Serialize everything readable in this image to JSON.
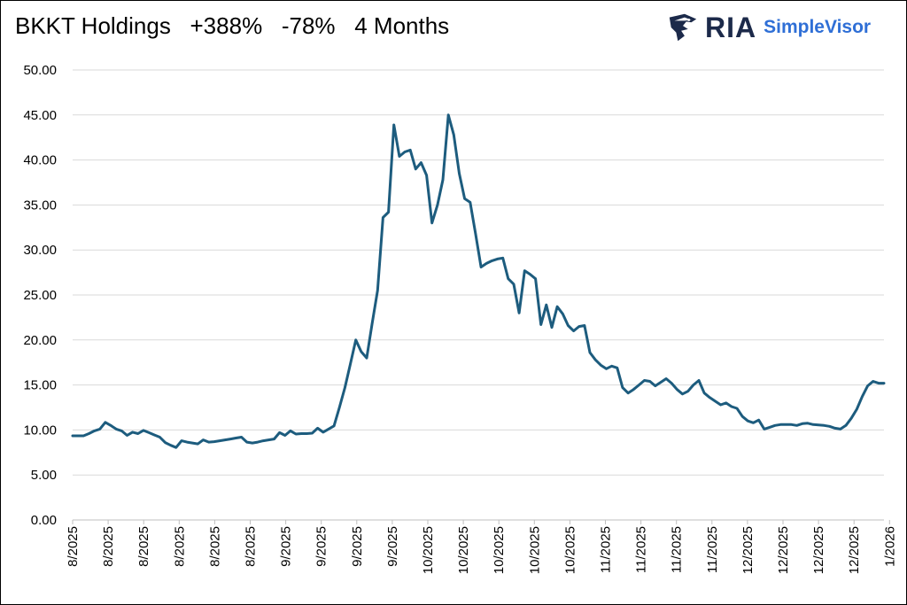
{
  "header": {
    "title": "BKKT Holdings   +388%   -78%   4 Months"
  },
  "brand": {
    "ria": "RIA",
    "simplevisor": "SimpleVisor",
    "colors": {
      "ria": "#1c2a4a",
      "simplevisor": "#2f6fd6"
    },
    "icon": "eagle-logo-icon"
  },
  "chart_data": {
    "type": "line",
    "title": "BKKT Holdings   +388%   -78%   4 Months",
    "xlabel": "",
    "ylabel": "",
    "ylim": [
      0,
      50
    ],
    "yticks": [
      "0.00",
      "5.00",
      "10.00",
      "15.00",
      "20.00",
      "25.00",
      "30.00",
      "35.00",
      "40.00",
      "45.00",
      "50.00"
    ],
    "xticks": [
      "8/2025",
      "8/2025",
      "8/2025",
      "8/2025",
      "8/2025",
      "8/2025",
      "9/2025",
      "9/2025",
      "9/2025",
      "9/2025",
      "10/2025",
      "10/2025",
      "10/2025",
      "10/2025",
      "10/2025",
      "11/2025",
      "11/2025",
      "11/2025",
      "11/2025",
      "12/2025",
      "12/2025",
      "12/2025",
      "12/2025",
      "1/2026"
    ],
    "grid": true,
    "legend": "none",
    "line_color": "#1d5c7e",
    "series": [
      {
        "values": [
          9.35,
          9.35,
          9.35,
          9.6,
          9.9,
          10.1,
          10.85,
          10.5,
          10.1,
          9.9,
          9.4,
          9.75,
          9.6,
          9.95,
          9.7,
          9.45,
          9.2,
          8.6,
          8.3,
          8.05,
          8.8,
          8.65,
          8.55,
          8.45,
          8.9,
          8.65,
          8.7,
          8.8,
          8.9,
          9.0,
          9.1,
          9.2,
          8.65,
          8.55,
          8.65,
          8.8,
          8.9,
          9.0,
          9.7,
          9.4,
          9.9,
          9.55,
          9.6,
          9.6,
          9.65,
          10.2,
          9.75,
          10.1,
          10.45,
          12.5,
          14.7,
          17.3,
          20.0,
          18.7,
          18.0,
          21.8,
          25.5,
          33.6,
          34.2,
          43.9,
          40.4,
          40.9,
          41.1,
          39.0,
          39.7,
          38.3,
          33.0,
          35.0,
          37.8,
          45.0,
          42.8,
          38.5,
          35.7,
          35.3,
          31.8,
          28.1,
          28.5,
          28.8,
          29.0,
          29.1,
          26.8,
          26.2,
          23.0,
          27.7,
          27.3,
          26.8,
          21.7,
          23.9,
          21.4,
          23.7,
          22.9,
          21.6,
          21.0,
          21.5,
          21.6,
          18.6,
          17.8,
          17.2,
          16.8,
          17.1,
          16.9,
          14.7,
          14.1,
          14.5,
          15.0,
          15.5,
          15.4,
          14.9,
          15.3,
          15.7,
          15.2,
          14.5,
          14.0,
          14.3,
          15.0,
          15.5,
          14.1,
          13.6,
          13.2,
          12.8,
          13.0,
          12.6,
          12.4,
          11.5,
          11.0,
          10.8,
          11.1,
          10.1,
          10.3,
          10.5,
          10.6,
          10.6,
          10.6,
          10.5,
          10.7,
          10.75,
          10.6,
          10.55,
          10.5,
          10.4,
          10.2,
          10.1,
          10.5,
          11.3,
          12.3,
          13.7,
          14.9,
          15.4,
          15.2,
          15.2
        ]
      }
    ]
  }
}
